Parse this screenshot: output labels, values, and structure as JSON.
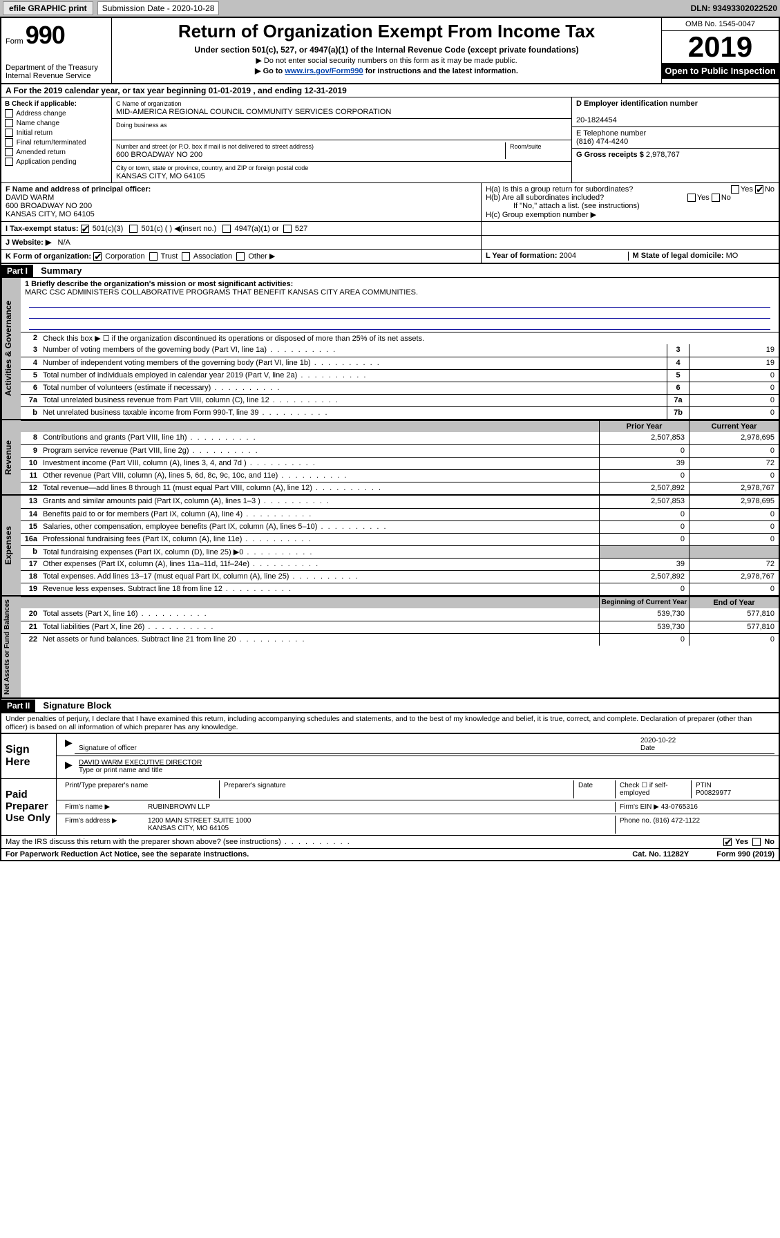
{
  "topbar": {
    "efile": "efile GRAPHIC print",
    "sublabel": "Submission Date - 2020-10-28",
    "dln": "DLN: 93493302022520"
  },
  "header": {
    "form": "Form",
    "num": "990",
    "dept": "Department of the Treasury\nInternal Revenue Service",
    "title": "Return of Organization Exempt From Income Tax",
    "sub": "Under section 501(c), 527, or 4947(a)(1) of the Internal Revenue Code (except private foundations)",
    "sub2": "▶ Do not enter social security numbers on this form as it may be made public.",
    "sub3": "▶ Go to www.irs.gov/Form990 for instructions and the latest information.",
    "omb": "OMB No. 1545-0047",
    "year": "2019",
    "open": "Open to Public Inspection"
  },
  "period": "A For the 2019 calendar year, or tax year beginning 01-01-2019    , and ending 12-31-2019",
  "boxB": {
    "label": "B Check if applicable:",
    "items": [
      "Address change",
      "Name change",
      "Initial return",
      "Final return/terminated",
      "Amended return",
      "Application pending"
    ]
  },
  "boxC": {
    "namelbl": "C Name of organization",
    "name": "MID-AMERICA REGIONAL COUNCIL COMMUNITY SERVICES CORPORATION",
    "dba": "Doing business as",
    "addrlbl": "Number and street (or P.O. box if mail is not delivered to street address)",
    "addr": "600 BROADWAY NO 200",
    "room": "Room/suite",
    "citylbl": "City or town, state or province, country, and ZIP or foreign postal code",
    "city": "KANSAS CITY, MO  64105"
  },
  "boxD": {
    "lbl": "D Employer identification number",
    "val": "20-1824454"
  },
  "boxE": {
    "lbl": "E Telephone number",
    "val": "(816) 474-4240"
  },
  "boxG": {
    "lbl": "G Gross receipts $",
    "val": "2,978,767"
  },
  "boxF": {
    "lbl": "F Name and address of principal officer:",
    "name": "DAVID WARM",
    "addr": "600 BROADWAY NO 200",
    "city": "KANSAS CITY, MO  64105"
  },
  "boxH": {
    "a": "H(a)  Is this a group return for subordinates?",
    "b": "H(b)  Are all subordinates included?",
    "bnote": "If \"No,\" attach a list. (see instructions)",
    "c": "H(c)  Group exemption number ▶",
    "yes": "Yes",
    "no": "No"
  },
  "boxI": {
    "lbl": "I  Tax-exempt status:",
    "opts": [
      "501(c)(3)",
      "501(c) (   ) ◀(insert no.)",
      "4947(a)(1) or",
      "527"
    ]
  },
  "boxJ": {
    "lbl": "J  Website: ▶",
    "val": "N/A"
  },
  "boxK": {
    "lbl": "K Form of organization:",
    "opts": [
      "Corporation",
      "Trust",
      "Association",
      "Other ▶"
    ]
  },
  "boxL": {
    "lbl": "L Year of formation:",
    "val": "2004"
  },
  "boxM": {
    "lbl": "M State of legal domicile:",
    "val": "MO"
  },
  "part1": {
    "tag": "Part I",
    "title": "Summary"
  },
  "mission": {
    "lbl": "1  Briefly describe the organization's mission or most significant activities:",
    "txt": "MARC CSC ADMINISTERS COLLABORATIVE PROGRAMS THAT BENEFIT KANSAS CITY AREA COMMUNITIES."
  },
  "gov": {
    "tab": "Activities & Governance",
    "l2": "Check this box ▶ ☐  if the organization discontinued its operations or disposed of more than 25% of its net assets.",
    "rows": [
      {
        "n": "3",
        "d": "Number of voting members of the governing body (Part VI, line 1a)",
        "c": "3",
        "v": "19"
      },
      {
        "n": "4",
        "d": "Number of independent voting members of the governing body (Part VI, line 1b)",
        "c": "4",
        "v": "19"
      },
      {
        "n": "5",
        "d": "Total number of individuals employed in calendar year 2019 (Part V, line 2a)",
        "c": "5",
        "v": "0"
      },
      {
        "n": "6",
        "d": "Total number of volunteers (estimate if necessary)",
        "c": "6",
        "v": "0"
      },
      {
        "n": "7a",
        "d": "Total unrelated business revenue from Part VIII, column (C), line 12",
        "c": "7a",
        "v": "0"
      },
      {
        "n": "b",
        "d": "Net unrelated business taxable income from Form 990-T, line 39",
        "c": "7b",
        "v": "0"
      }
    ]
  },
  "rev": {
    "tab": "Revenue",
    "hdr1": "Prior Year",
    "hdr2": "Current Year",
    "rows": [
      {
        "n": "8",
        "d": "Contributions and grants (Part VIII, line 1h)",
        "v1": "2,507,853",
        "v2": "2,978,695"
      },
      {
        "n": "9",
        "d": "Program service revenue (Part VIII, line 2g)",
        "v1": "0",
        "v2": "0"
      },
      {
        "n": "10",
        "d": "Investment income (Part VIII, column (A), lines 3, 4, and 7d )",
        "v1": "39",
        "v2": "72"
      },
      {
        "n": "11",
        "d": "Other revenue (Part VIII, column (A), lines 5, 6d, 8c, 9c, 10c, and 11e)",
        "v1": "0",
        "v2": "0"
      },
      {
        "n": "12",
        "d": "Total revenue—add lines 8 through 11 (must equal Part VIII, column (A), line 12)",
        "v1": "2,507,892",
        "v2": "2,978,767"
      }
    ]
  },
  "exp": {
    "tab": "Expenses",
    "rows": [
      {
        "n": "13",
        "d": "Grants and similar amounts paid (Part IX, column (A), lines 1–3 )",
        "v1": "2,507,853",
        "v2": "2,978,695"
      },
      {
        "n": "14",
        "d": "Benefits paid to or for members (Part IX, column (A), line 4)",
        "v1": "0",
        "v2": "0"
      },
      {
        "n": "15",
        "d": "Salaries, other compensation, employee benefits (Part IX, column (A), lines 5–10)",
        "v1": "0",
        "v2": "0"
      },
      {
        "n": "16a",
        "d": "Professional fundraising fees (Part IX, column (A), line 11e)",
        "v1": "0",
        "v2": "0"
      },
      {
        "n": "b",
        "d": "Total fundraising expenses (Part IX, column (D), line 25) ▶0",
        "v1": "",
        "v2": "",
        "shade": true
      },
      {
        "n": "17",
        "d": "Other expenses (Part IX, column (A), lines 11a–11d, 11f–24e)",
        "v1": "39",
        "v2": "72"
      },
      {
        "n": "18",
        "d": "Total expenses. Add lines 13–17 (must equal Part IX, column (A), line 25)",
        "v1": "2,507,892",
        "v2": "2,978,767"
      },
      {
        "n": "19",
        "d": "Revenue less expenses. Subtract line 18 from line 12",
        "v1": "0",
        "v2": "0"
      }
    ]
  },
  "net": {
    "tab": "Net Assets or Fund Balances",
    "hdr1": "Beginning of Current Year",
    "hdr2": "End of Year",
    "rows": [
      {
        "n": "20",
        "d": "Total assets (Part X, line 16)",
        "v1": "539,730",
        "v2": "577,810"
      },
      {
        "n": "21",
        "d": "Total liabilities (Part X, line 26)",
        "v1": "539,730",
        "v2": "577,810"
      },
      {
        "n": "22",
        "d": "Net assets or fund balances. Subtract line 21 from line 20",
        "v1": "0",
        "v2": "0"
      }
    ]
  },
  "part2": {
    "tag": "Part II",
    "title": "Signature Block"
  },
  "pen": "Under penalties of perjury, I declare that I have examined this return, including accompanying schedules and statements, and to the best of my knowledge and belief, it is true, correct, and complete. Declaration of preparer (other than officer) is based on all information of which preparer has any knowledge.",
  "sign": {
    "here": "Sign Here",
    "sigoff": "Signature of officer",
    "date": "2020-10-22",
    "datelbl": "Date",
    "name": "DAVID WARM  EXECUTIVE DIRECTOR",
    "namelbl": "Type or print name and title"
  },
  "paid": {
    "lbl": "Paid Preparer Use Only",
    "h1": "Print/Type preparer's name",
    "h2": "Preparer's signature",
    "h3": "Date",
    "h4": "Check ☐ if self-employed",
    "h5": "PTIN",
    "ptin": "P00829977",
    "firmlbl": "Firm's name    ▶",
    "firm": "RUBINBROWN LLP",
    "einlbl": "Firm's EIN ▶",
    "ein": "43-0765316",
    "addrlbl": "Firm's address ▶",
    "addr": "1200 MAIN STREET SUITE 1000",
    "city": "KANSAS CITY, MO  64105",
    "phonelbl": "Phone no.",
    "phone": "(816) 472-1122"
  },
  "discuss": "May the IRS discuss this return with the preparer shown above? (see instructions)",
  "footer": {
    "l": "For Paperwork Reduction Act Notice, see the separate instructions.",
    "m": "Cat. No. 11282Y",
    "r": "Form 990 (2019)"
  }
}
